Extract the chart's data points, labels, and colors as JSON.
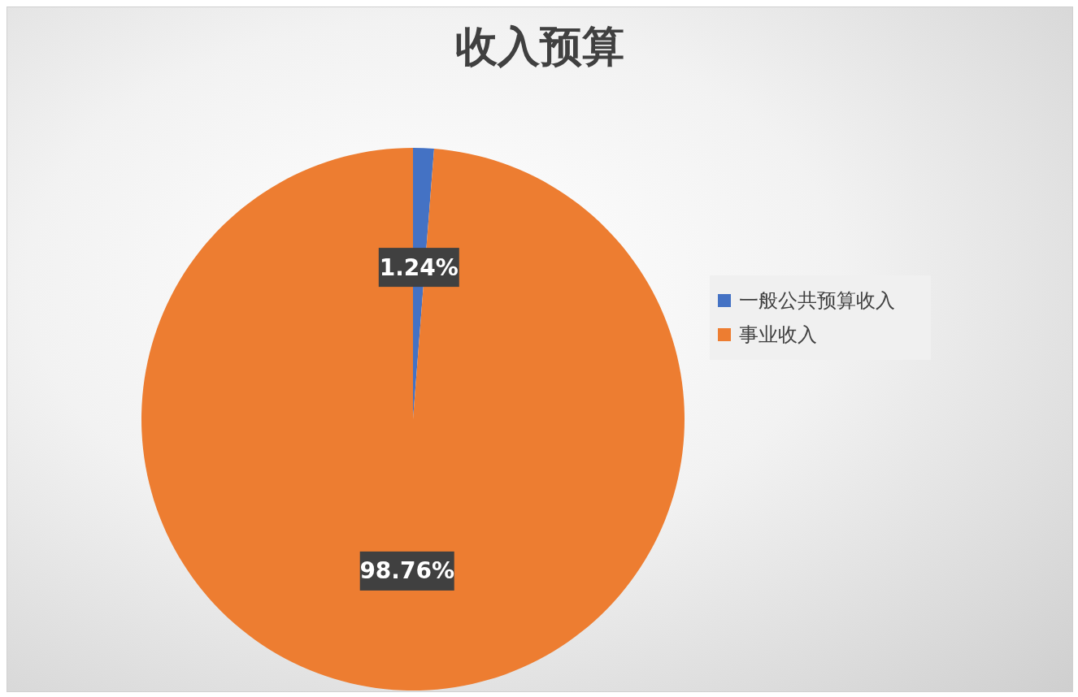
{
  "chart_data": {
    "type": "pie",
    "title": "收入预算",
    "categories": [
      "一般公共预算收入",
      "事业收入"
    ],
    "values": [
      1.24,
      98.76
    ],
    "colors": [
      "#4472c4",
      "#ed7d31"
    ],
    "value_labels": [
      "1.24%",
      "98.76%"
    ],
    "legend": "right"
  }
}
